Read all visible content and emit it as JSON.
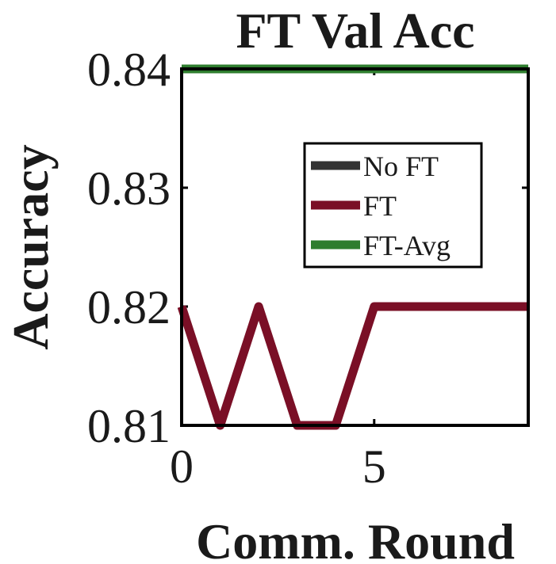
{
  "chart_data": {
    "type": "line",
    "title": "FT Val Acc",
    "xlabel": "Comm. Round",
    "ylabel": "Accuracy",
    "xlim": [
      0,
      9
    ],
    "ylim": [
      0.81,
      0.84
    ],
    "xticks": [
      0,
      5
    ],
    "xtick_labels": [
      "0",
      "5"
    ],
    "yticks": [
      0.81,
      0.82,
      0.83,
      0.84
    ],
    "ytick_labels": [
      "0.81",
      "0.82",
      "0.83",
      "0.84"
    ],
    "grid": false,
    "legend_position": "top-right",
    "x": [
      0,
      1,
      2,
      3,
      4,
      5,
      6,
      7,
      8,
      9
    ],
    "series": [
      {
        "name": "No FT",
        "color": "#333333",
        "values": [
          0.84,
          0.84,
          0.84,
          0.84,
          0.84,
          0.84,
          0.84,
          0.84,
          0.84,
          0.84
        ]
      },
      {
        "name": "FT",
        "color": "#7a0f26",
        "values": [
          0.82,
          0.81,
          0.82,
          0.81,
          0.81,
          0.82,
          0.82,
          0.82,
          0.82,
          0.82
        ]
      },
      {
        "name": "FT-Avg",
        "color": "#2e7d2e",
        "values": [
          0.84,
          0.84,
          0.84,
          0.84,
          0.84,
          0.84,
          0.84,
          0.84,
          0.84,
          0.84
        ]
      }
    ]
  }
}
